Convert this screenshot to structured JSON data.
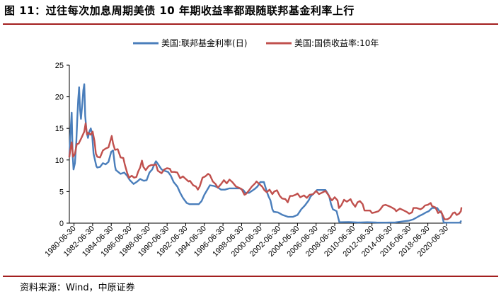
{
  "title": "图 11：过往每次加息周期美债 10 年期收益率都跟随联邦基金利率上行",
  "source": "资料来源：Wind，中原证券",
  "chart_data": {
    "type": "line",
    "title": "",
    "xlabel": "",
    "ylabel": "",
    "ylim": [
      0,
      25
    ],
    "yticks": [
      "0",
      "5",
      "10",
      "15",
      "20",
      "25"
    ],
    "xlim": [
      1980.0,
      2022.1
    ],
    "xticks": [
      "1980-06-30",
      "1982-06-30",
      "1984-06-30",
      "1986-06-30",
      "1988-06-30",
      "1990-06-30",
      "1992-06-30",
      "1994-06-30",
      "1996-06-30",
      "1998-06-30",
      "2000-06-30",
      "2002-06-30",
      "2004-06-30",
      "2006-06-30",
      "2008-06-30",
      "2010-06-30",
      "2012-06-30",
      "2014-06-30",
      "2016-06-30",
      "2018-06-30",
      "2020-06-30"
    ],
    "grid": false,
    "legend": "top",
    "series": [
      {
        "name": "美国:联邦基金利率(日)",
        "color": "#4a7ebb",
        "points": [
          [
            1980.0,
            10.5
          ],
          [
            1980.1,
            13.8
          ],
          [
            1980.25,
            17.5
          ],
          [
            1980.35,
            11.0
          ],
          [
            1980.45,
            8.5
          ],
          [
            1980.6,
            9.5
          ],
          [
            1980.75,
            13.0
          ],
          [
            1980.85,
            16.5
          ],
          [
            1980.95,
            19.5
          ],
          [
            1981.05,
            21.5
          ],
          [
            1981.15,
            18.0
          ],
          [
            1981.25,
            16.5
          ],
          [
            1981.4,
            19.0
          ],
          [
            1981.5,
            21.0
          ],
          [
            1981.6,
            22.0
          ],
          [
            1981.7,
            17.0
          ],
          [
            1981.85,
            14.5
          ],
          [
            1982.0,
            13.5
          ],
          [
            1982.15,
            14.5
          ],
          [
            1982.3,
            15.0
          ],
          [
            1982.45,
            14.0
          ],
          [
            1982.6,
            11.0
          ],
          [
            1982.75,
            10.0
          ],
          [
            1982.9,
            9.0
          ],
          [
            1983.0,
            8.8
          ],
          [
            1983.3,
            8.9
          ],
          [
            1983.6,
            9.5
          ],
          [
            1983.9,
            9.3
          ],
          [
            1984.2,
            9.7
          ],
          [
            1984.5,
            11.3
          ],
          [
            1984.7,
            11.5
          ],
          [
            1984.9,
            9.0
          ],
          [
            1985.0,
            8.4
          ],
          [
            1985.5,
            7.8
          ],
          [
            1985.9,
            8.0
          ],
          [
            1986.2,
            7.5
          ],
          [
            1986.5,
            6.8
          ],
          [
            1986.9,
            6.2
          ],
          [
            1987.0,
            6.3
          ],
          [
            1987.3,
            6.6
          ],
          [
            1987.6,
            7.0
          ],
          [
            1987.85,
            6.8
          ],
          [
            1988.0,
            6.7
          ],
          [
            1988.3,
            6.8
          ],
          [
            1988.6,
            8.0
          ],
          [
            1988.9,
            8.5
          ],
          [
            1989.1,
            9.2
          ],
          [
            1989.3,
            9.8
          ],
          [
            1989.5,
            9.4
          ],
          [
            1989.9,
            8.5
          ],
          [
            1990.2,
            8.3
          ],
          [
            1990.6,
            8.1
          ],
          [
            1990.9,
            7.5
          ],
          [
            1991.2,
            6.5
          ],
          [
            1991.6,
            5.8
          ],
          [
            1991.9,
            4.8
          ],
          [
            1992.2,
            4.0
          ],
          [
            1992.6,
            3.2
          ],
          [
            1992.9,
            3.0
          ],
          [
            1993.3,
            3.0
          ],
          [
            1993.9,
            3.0
          ],
          [
            1994.2,
            3.5
          ],
          [
            1994.5,
            4.5
          ],
          [
            1994.9,
            5.5
          ],
          [
            1995.1,
            6.0
          ],
          [
            1995.5,
            5.9
          ],
          [
            1995.9,
            5.7
          ],
          [
            1996.3,
            5.3
          ],
          [
            1996.7,
            5.3
          ],
          [
            1997.2,
            5.5
          ],
          [
            1997.6,
            5.5
          ],
          [
            1997.9,
            5.5
          ],
          [
            1998.3,
            5.5
          ],
          [
            1998.7,
            5.2
          ],
          [
            1998.9,
            4.8
          ],
          [
            1999.3,
            4.8
          ],
          [
            1999.6,
            5.1
          ],
          [
            1999.9,
            5.4
          ],
          [
            2000.2,
            5.8
          ],
          [
            2000.5,
            6.5
          ],
          [
            2000.9,
            6.5
          ],
          [
            2001.0,
            6.0
          ],
          [
            2001.2,
            5.0
          ],
          [
            2001.4,
            4.2
          ],
          [
            2001.6,
            3.6
          ],
          [
            2001.8,
            2.2
          ],
          [
            2001.95,
            1.8
          ],
          [
            2002.4,
            1.7
          ],
          [
            2002.9,
            1.3
          ],
          [
            2003.5,
            1.0
          ],
          [
            2004.0,
            1.0
          ],
          [
            2004.5,
            1.3
          ],
          [
            2004.9,
            2.2
          ],
          [
            2005.3,
            2.8
          ],
          [
            2005.7,
            3.6
          ],
          [
            2005.9,
            4.2
          ],
          [
            2006.3,
            4.8
          ],
          [
            2006.6,
            5.25
          ],
          [
            2007.0,
            5.25
          ],
          [
            2007.5,
            5.25
          ],
          [
            2007.7,
            4.8
          ],
          [
            2007.9,
            4.3
          ],
          [
            2008.1,
            3.0
          ],
          [
            2008.3,
            2.2
          ],
          [
            2008.7,
            1.9
          ],
          [
            2008.85,
            1.0
          ],
          [
            2009.0,
            0.15
          ],
          [
            2010.0,
            0.18
          ],
          [
            2011.0,
            0.1
          ],
          [
            2012.0,
            0.15
          ],
          [
            2013.0,
            0.1
          ],
          [
            2014.0,
            0.09
          ],
          [
            2015.0,
            0.12
          ],
          [
            2015.95,
            0.3
          ],
          [
            2016.5,
            0.4
          ],
          [
            2016.95,
            0.6
          ],
          [
            2017.3,
            0.9
          ],
          [
            2017.6,
            1.15
          ],
          [
            2017.95,
            1.4
          ],
          [
            2018.3,
            1.7
          ],
          [
            2018.6,
            1.9
          ],
          [
            2018.95,
            2.4
          ],
          [
            2019.5,
            2.4
          ],
          [
            2019.65,
            2.1
          ],
          [
            2019.8,
            1.8
          ],
          [
            2020.0,
            1.55
          ],
          [
            2020.2,
            0.1
          ],
          [
            2020.5,
            0.08
          ],
          [
            2021.0,
            0.08
          ],
          [
            2021.5,
            0.08
          ],
          [
            2021.95,
            0.08
          ],
          [
            2022.05,
            0.3
          ]
        ]
      },
      {
        "name": "美国:国债收益率:10年",
        "color": "#c0504d",
        "points": [
          [
            1980.0,
            10.5
          ],
          [
            1980.1,
            11.5
          ],
          [
            1980.25,
            12.8
          ],
          [
            1980.4,
            10.5
          ],
          [
            1980.6,
            11.0
          ],
          [
            1980.8,
            12.5
          ],
          [
            1981.0,
            12.6
          ],
          [
            1981.3,
            13.5
          ],
          [
            1981.6,
            14.5
          ],
          [
            1981.75,
            15.8
          ],
          [
            1981.9,
            14.0
          ],
          [
            1982.0,
            14.3
          ],
          [
            1982.3,
            14.0
          ],
          [
            1982.5,
            14.5
          ],
          [
            1982.7,
            13.0
          ],
          [
            1982.85,
            11.0
          ],
          [
            1983.0,
            10.5
          ],
          [
            1983.3,
            10.4
          ],
          [
            1983.6,
            11.5
          ],
          [
            1983.9,
            11.8
          ],
          [
            1984.2,
            12.0
          ],
          [
            1984.4,
            13.0
          ],
          [
            1984.55,
            13.8
          ],
          [
            1984.7,
            12.6
          ],
          [
            1984.9,
            11.6
          ],
          [
            1985.2,
            11.7
          ],
          [
            1985.5,
            10.4
          ],
          [
            1985.8,
            10.3
          ],
          [
            1985.95,
            9.3
          ],
          [
            1986.2,
            8.0
          ],
          [
            1986.4,
            7.2
          ],
          [
            1986.7,
            7.5
          ],
          [
            1986.95,
            7.2
          ],
          [
            1987.2,
            7.3
          ],
          [
            1987.4,
            8.2
          ],
          [
            1987.6,
            8.8
          ],
          [
            1987.8,
            9.9
          ],
          [
            1987.95,
            8.9
          ],
          [
            1988.2,
            8.4
          ],
          [
            1988.5,
            9.0
          ],
          [
            1988.8,
            9.2
          ],
          [
            1989.1,
            9.2
          ],
          [
            1989.3,
            9.3
          ],
          [
            1989.5,
            8.3
          ],
          [
            1989.9,
            7.9
          ],
          [
            1990.2,
            8.5
          ],
          [
            1990.5,
            8.7
          ],
          [
            1990.8,
            8.6
          ],
          [
            1990.95,
            8.1
          ],
          [
            1991.3,
            8.1
          ],
          [
            1991.6,
            8.0
          ],
          [
            1991.9,
            7.1
          ],
          [
            1992.2,
            7.4
          ],
          [
            1992.5,
            7.0
          ],
          [
            1992.8,
            6.6
          ],
          [
            1992.95,
            6.7
          ],
          [
            1993.3,
            6.0
          ],
          [
            1993.6,
            5.8
          ],
          [
            1993.8,
            5.3
          ],
          [
            1994.0,
            5.8
          ],
          [
            1994.3,
            7.2
          ],
          [
            1994.6,
            7.4
          ],
          [
            1994.9,
            7.8
          ],
          [
            1995.1,
            7.6
          ],
          [
            1995.4,
            6.6
          ],
          [
            1995.7,
            6.2
          ],
          [
            1995.95,
            5.6
          ],
          [
            1996.3,
            6.2
          ],
          [
            1996.6,
            6.8
          ],
          [
            1996.9,
            6.3
          ],
          [
            1997.2,
            6.9
          ],
          [
            1997.5,
            6.5
          ],
          [
            1997.9,
            5.8
          ],
          [
            1998.2,
            5.6
          ],
          [
            1998.5,
            5.4
          ],
          [
            1998.8,
            4.5
          ],
          [
            1998.95,
            4.6
          ],
          [
            1999.3,
            5.2
          ],
          [
            1999.6,
            5.8
          ],
          [
            1999.95,
            6.3
          ],
          [
            2000.1,
            6.6
          ],
          [
            2000.4,
            6.2
          ],
          [
            2000.7,
            5.8
          ],
          [
            2000.95,
            5.2
          ],
          [
            2001.2,
            4.9
          ],
          [
            2001.5,
            5.3
          ],
          [
            2001.8,
            4.6
          ],
          [
            2002.0,
            5.0
          ],
          [
            2002.3,
            5.2
          ],
          [
            2002.6,
            4.3
          ],
          [
            2002.85,
            3.9
          ],
          [
            2003.2,
            3.8
          ],
          [
            2003.45,
            3.3
          ],
          [
            2003.7,
            4.3
          ],
          [
            2003.95,
            4.3
          ],
          [
            2004.3,
            4.5
          ],
          [
            2004.5,
            4.7
          ],
          [
            2004.8,
            4.1
          ],
          [
            2005.2,
            4.4
          ],
          [
            2005.5,
            4.0
          ],
          [
            2005.8,
            4.5
          ],
          [
            2006.2,
            4.6
          ],
          [
            2006.5,
            5.1
          ],
          [
            2006.8,
            4.6
          ],
          [
            2007.1,
            4.8
          ],
          [
            2007.5,
            5.1
          ],
          [
            2007.8,
            4.5
          ],
          [
            2007.95,
            4.1
          ],
          [
            2008.2,
            3.6
          ],
          [
            2008.5,
            4.1
          ],
          [
            2008.8,
            3.6
          ],
          [
            2008.95,
            2.4
          ],
          [
            2009.2,
            2.8
          ],
          [
            2009.5,
            3.7
          ],
          [
            2009.8,
            3.4
          ],
          [
            2010.2,
            3.8
          ],
          [
            2010.4,
            3.2
          ],
          [
            2010.7,
            2.6
          ],
          [
            2010.95,
            3.3
          ],
          [
            2011.2,
            3.5
          ],
          [
            2011.5,
            3.0
          ],
          [
            2011.7,
            2.0
          ],
          [
            2011.95,
            2.0
          ],
          [
            2012.3,
            2.0
          ],
          [
            2012.5,
            1.6
          ],
          [
            2012.8,
            1.7
          ],
          [
            2013.2,
            1.9
          ],
          [
            2013.4,
            2.2
          ],
          [
            2013.7,
            2.8
          ],
          [
            2013.95,
            2.9
          ],
          [
            2014.3,
            2.7
          ],
          [
            2014.6,
            2.5
          ],
          [
            2014.95,
            2.2
          ],
          [
            2015.1,
            1.9
          ],
          [
            2015.5,
            2.3
          ],
          [
            2015.8,
            2.1
          ],
          [
            2016.2,
            1.8
          ],
          [
            2016.5,
            1.5
          ],
          [
            2016.8,
            1.7
          ],
          [
            2016.95,
            2.4
          ],
          [
            2017.3,
            2.4
          ],
          [
            2017.7,
            2.2
          ],
          [
            2017.95,
            2.4
          ],
          [
            2018.2,
            2.8
          ],
          [
            2018.5,
            2.9
          ],
          [
            2018.8,
            3.2
          ],
          [
            2018.95,
            2.7
          ],
          [
            2019.3,
            2.5
          ],
          [
            2019.6,
            1.6
          ],
          [
            2019.9,
            1.9
          ],
          [
            2020.15,
            1.1
          ],
          [
            2020.3,
            0.6
          ],
          [
            2020.6,
            0.6
          ],
          [
            2020.9,
            0.9
          ],
          [
            2021.2,
            1.6
          ],
          [
            2021.4,
            1.7
          ],
          [
            2021.6,
            1.3
          ],
          [
            2021.85,
            1.5
          ],
          [
            2022.05,
            1.9
          ],
          [
            2022.1,
            2.4
          ]
        ]
      }
    ]
  }
}
